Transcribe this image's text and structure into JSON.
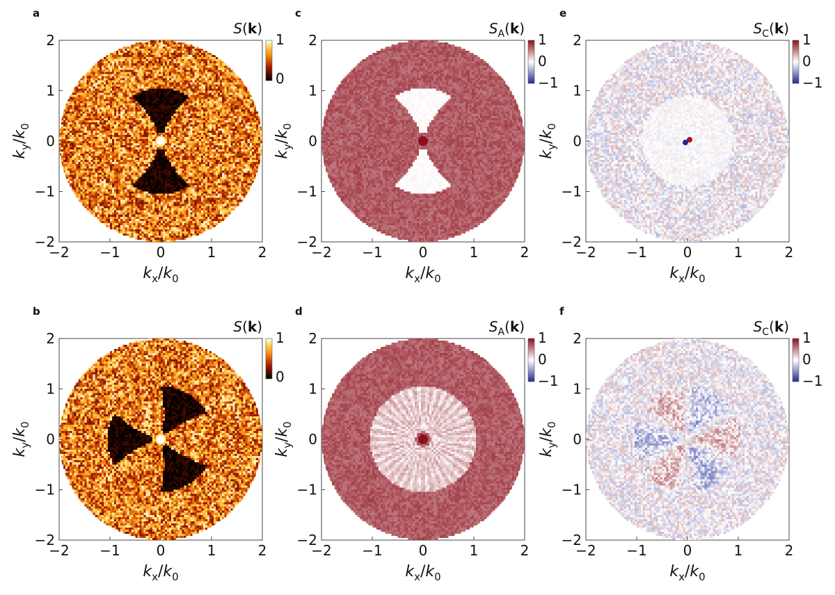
{
  "figure": {
    "colorbar_ticks": {
      "hot": [
        "1",
        "0"
      ],
      "diverging": [
        "1",
        "0",
        "−1"
      ]
    }
  },
  "chart_data": [
    {
      "type": "heatmap",
      "panel": "a",
      "colorbar_title": "S(k)",
      "colormap": "hot",
      "clim": [
        0,
        1
      ],
      "xlabel": "kx/k0",
      "ylabel": "ky/k0",
      "xlim": [
        -2,
        2
      ],
      "ylim": [
        -2,
        2
      ],
      "xticks": [
        "−2",
        "−1",
        "0",
        "1",
        "2"
      ],
      "yticks": [
        "2",
        "1",
        "0",
        "−1",
        "−2"
      ],
      "domain": "disk of radius 2",
      "pattern": "dark double lobe (bowtie) along y",
      "lobes": 2,
      "lobe_angles_deg": [
        90,
        270
      ],
      "lobe_half_width_deg": 30,
      "lobe_k_range": [
        0.15,
        1.05
      ],
      "lobe_value": 0.05,
      "background_value": 0.6,
      "noise": 0.35,
      "center_spot": "bright"
    },
    {
      "type": "heatmap",
      "panel": "b",
      "colorbar_title": "S(k)",
      "colormap": "hot",
      "clim": [
        0,
        1
      ],
      "xlabel": "kx/k0",
      "ylabel": "ky/k0",
      "xlim": [
        -2,
        2
      ],
      "ylim": [
        -2,
        2
      ],
      "xticks": [
        "−2",
        "−1",
        "0",
        "1",
        "2"
      ],
      "yticks": [
        "2",
        "1",
        "0",
        "−1",
        "−2"
      ],
      "domain": "disk of radius 2",
      "pattern": "dark triple lobe",
      "lobes": 3,
      "lobe_angles_deg": [
        60,
        180,
        300
      ],
      "lobe_half_width_deg": 28,
      "lobe_k_range": [
        0.15,
        1.05
      ],
      "lobe_value": 0.05,
      "background_value": 0.6,
      "noise": 0.35,
      "center_spot": "bright"
    },
    {
      "type": "heatmap",
      "panel": "c",
      "colorbar_title": "SA(k)",
      "colormap": "diverging",
      "clim": [
        -1,
        1
      ],
      "xlabel": "kx/k0",
      "ylabel": "ky/k0",
      "xlim": [
        -2,
        2
      ],
      "ylim": [
        -2,
        2
      ],
      "xticks": [
        "−2",
        "−1",
        "0",
        "1",
        "2"
      ],
      "yticks": [
        "2",
        "1",
        "0",
        "−1",
        "−2"
      ],
      "domain": "disk of radius 2",
      "pattern": "near-zero double lobe along y on positive background",
      "lobes": 2,
      "lobe_angles_deg": [
        90,
        270
      ],
      "lobe_half_width_deg": 30,
      "lobe_k_range": [
        0.15,
        1.05
      ],
      "lobe_value": 0.02,
      "background_value": 0.68,
      "noise": 0.12,
      "center_spot": "dark red"
    },
    {
      "type": "heatmap",
      "panel": "d",
      "colorbar_title": "SA(k)",
      "colormap": "diverging",
      "clim": [
        -1,
        1
      ],
      "xlabel": "kx/k0",
      "ylabel": "ky/k0",
      "xlim": [
        -2,
        2
      ],
      "ylim": [
        -2,
        2
      ],
      "xticks": [
        "−2",
        "−1",
        "0",
        "1",
        "2"
      ],
      "yticks": [
        "2",
        "1",
        "0",
        "−1",
        "−2"
      ],
      "domain": "disk of radius 2",
      "pattern": "pale ring with radial streaks on positive background",
      "lobes": 0,
      "ring_k_range": [
        0.15,
        1.05
      ],
      "ring_value": 0.22,
      "background_value": 0.68,
      "noise": 0.12,
      "center_spot": "dark red"
    },
    {
      "type": "heatmap",
      "panel": "e",
      "colorbar_title": "SC(k)",
      "colormap": "diverging",
      "clim": [
        -1,
        1
      ],
      "xlabel": "kx/k0",
      "ylabel": "ky/k0",
      "xlim": [
        -2,
        2
      ],
      "ylim": [
        -2,
        2
      ],
      "xticks": [
        "−2",
        "−1",
        "0",
        "1",
        "2"
      ],
      "yticks": [
        "2",
        "1",
        "0",
        "−1",
        "−2"
      ],
      "domain": "disk of radius 2",
      "pattern": "weak noise around 0, quiet region near center",
      "lobes": 0,
      "background_value": 0.0,
      "noise": 0.3,
      "center_spot": "small red/blue dipole"
    },
    {
      "type": "heatmap",
      "panel": "f",
      "colorbar_title": "SC(k)",
      "colormap": "diverging",
      "clim": [
        -1,
        1
      ],
      "xlabel": "kx/k0",
      "ylabel": "ky/k0",
      "xlim": [
        -2,
        2
      ],
      "ylim": [
        -2,
        2
      ],
      "xticks": [
        "−2",
        "−1",
        "0",
        "1",
        "2"
      ],
      "yticks": [
        "2",
        "1",
        "0",
        "−1",
        "−2"
      ],
      "domain": "disk of radius 2",
      "pattern": "alternating red/blue sectors (six-fold)",
      "lobes": 6,
      "sector_angles_deg": [
        0,
        60,
        120,
        180,
        240,
        300
      ],
      "sector_signs": [
        1,
        -1,
        1,
        -1,
        1,
        -1
      ],
      "sector_amplitude": 0.32,
      "sector_k_range": [
        0.15,
        1.05
      ],
      "background_value": 0.0,
      "noise": 0.3,
      "center_spot": "none"
    }
  ]
}
